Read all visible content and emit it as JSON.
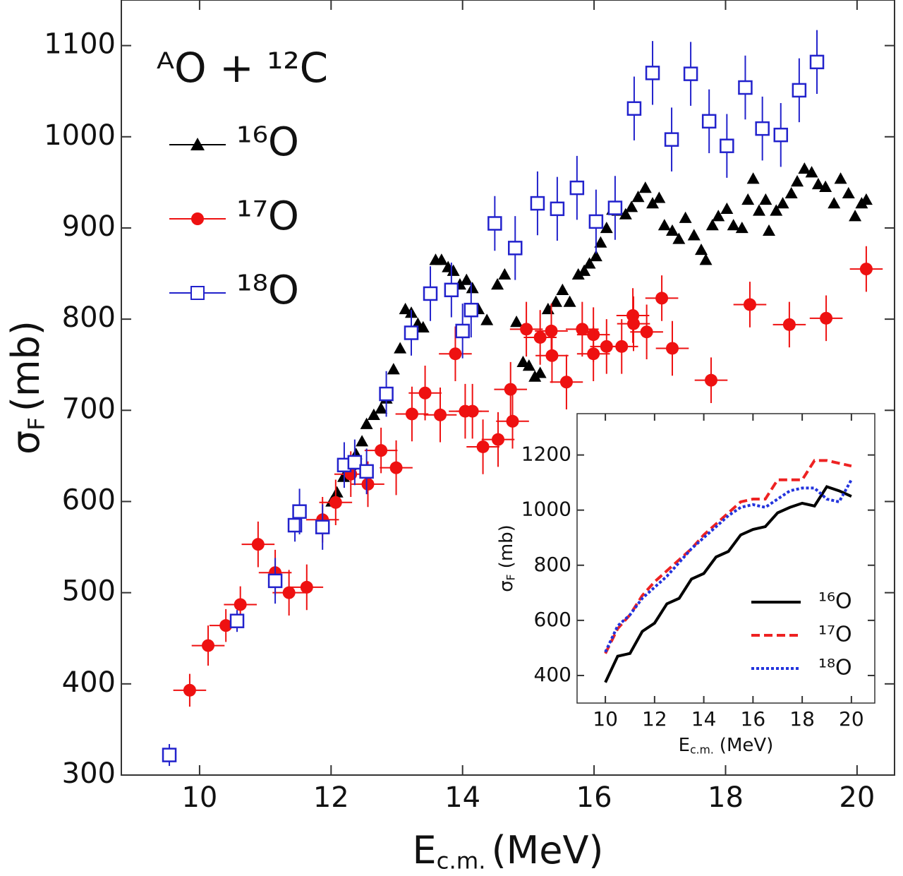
{
  "chart_data": [
    {
      "type": "scatter",
      "title": "ᴬO + ¹²C",
      "x_label": "E",
      "x_label_sub": "c.m.",
      "x_label_unit": "(MeV)",
      "y_label": "σ",
      "y_label_sub": "F",
      "y_label_unit": "(mb)",
      "xlim": [
        8.81,
        20.57
      ],
      "ylim": [
        300,
        1150
      ],
      "xticks": [
        10,
        12,
        14,
        16,
        18,
        20
      ],
      "yticks": [
        300,
        400,
        500,
        600,
        700,
        800,
        900,
        1000,
        1100
      ],
      "legend": "upper left",
      "series": [
        {
          "name": "¹⁶O",
          "color": "#000000",
          "marker": "triangle",
          "x": [
            12.01,
            12.09,
            12.19,
            12.29,
            12.38,
            12.47,
            12.54,
            12.65,
            12.76,
            12.84,
            12.95,
            13.05,
            13.13,
            13.22,
            13.32,
            13.4,
            13.51,
            13.59,
            13.68,
            13.78,
            13.86,
            13.96,
            14.06,
            14.15,
            14.24,
            14.37,
            14.53,
            14.64,
            14.82,
            14.92,
            15.01,
            15.1,
            15.18,
            15.3,
            15.42,
            15.52,
            15.63,
            15.76,
            15.85,
            15.93,
            16.03,
            16.1,
            16.19,
            16.28,
            16.36,
            16.48,
            16.57,
            16.67,
            16.78,
            16.89,
            16.99,
            17.07,
            17.19,
            17.29,
            17.39,
            17.52,
            17.63,
            17.7,
            17.8,
            17.89,
            18.02,
            18.12,
            18.25,
            18.34,
            18.42,
            18.51,
            18.61,
            18.66,
            18.77,
            18.87,
            19.0,
            19.09,
            19.2,
            19.31,
            19.41,
            19.52,
            19.65,
            19.75,
            19.87,
            19.97,
            20.07,
            20.14
          ],
          "values": [
            600,
            610,
            627,
            640,
            652,
            666,
            685,
            695,
            702,
            713,
            745,
            768,
            811,
            807,
            795,
            791,
            830,
            865,
            865,
            857,
            853,
            838,
            843,
            834,
            811,
            799,
            838,
            849,
            797,
            753,
            749,
            737,
            741,
            811,
            819,
            832,
            819,
            849,
            853,
            861,
            869,
            884,
            900,
            920,
            919,
            915,
            923,
            934,
            944,
            927,
            933,
            903,
            897,
            888,
            911,
            892,
            876,
            865,
            903,
            913,
            921,
            903,
            900,
            931,
            954,
            919,
            931,
            897,
            919,
            927,
            938,
            951,
            965,
            961,
            948,
            945,
            927,
            954,
            938,
            913,
            927,
            931
          ]
        },
        {
          "name": "¹⁷O",
          "color": "#ee1111",
          "marker": "circle",
          "xerr": 0.25,
          "x": [
            9.85,
            10.13,
            10.4,
            10.62,
            10.89,
            11.15,
            11.36,
            11.63,
            11.87,
            12.07,
            12.3,
            12.56,
            12.76,
            12.99,
            13.23,
            13.43,
            13.66,
            13.89,
            14.04,
            14.15,
            14.31,
            14.54,
            14.73,
            14.76,
            14.97,
            15.18,
            15.35,
            15.36,
            15.58,
            15.82,
            15.99,
            15.99,
            16.19,
            16.42,
            16.59,
            16.6,
            16.8,
            17.03,
            17.19,
            17.78,
            18.37,
            18.97,
            19.53,
            20.14
          ],
          "values": [
            393,
            442,
            464,
            487,
            553,
            522,
            500,
            506,
            580,
            599,
            630,
            619,
            656,
            637,
            696,
            719,
            695,
            762,
            699,
            699,
            660,
            668,
            723,
            688,
            789,
            780,
            787,
            760,
            731,
            789,
            783,
            762,
            770,
            770,
            804,
            795,
            786,
            823,
            768,
            733,
            816,
            794,
            801,
            855
          ],
          "yerr": [
            18,
            22,
            18,
            20,
            25,
            25,
            25,
            25,
            25,
            25,
            25,
            25,
            25,
            30,
            30,
            30,
            30,
            30,
            30,
            30,
            30,
            30,
            30,
            30,
            30,
            30,
            30,
            30,
            30,
            30,
            30,
            30,
            30,
            30,
            30,
            30,
            30,
            25,
            30,
            25,
            25,
            25,
            25,
            25
          ]
        },
        {
          "name": "¹⁸O",
          "color": "#2222cc",
          "marker": "square",
          "xerr": 0.06,
          "x": [
            9.54,
            10.57,
            11.15,
            11.45,
            11.52,
            11.87,
            12.2,
            12.36,
            12.54,
            12.84,
            13.22,
            13.51,
            13.83,
            14.0,
            14.13,
            14.49,
            14.8,
            15.14,
            15.44,
            15.74,
            16.03,
            16.32,
            16.61,
            16.89,
            17.18,
            17.47,
            17.75,
            18.02,
            18.3,
            18.56,
            18.84,
            19.12,
            19.39
          ],
          "values": [
            322,
            469,
            513,
            574,
            589,
            572,
            640,
            643,
            633,
            718,
            785,
            828,
            832,
            787,
            810,
            905,
            878,
            927,
            921,
            944,
            907,
            922,
            1031,
            1070,
            997,
            1069,
            1017,
            990,
            1054,
            1009,
            1002,
            1051,
            1082
          ],
          "yerr": [
            12,
            12,
            25,
            18,
            25,
            25,
            25,
            25,
            25,
            25,
            25,
            30,
            30,
            30,
            30,
            30,
            35,
            35,
            35,
            35,
            35,
            35,
            35,
            35,
            35,
            35,
            35,
            35,
            35,
            35,
            35,
            35,
            35
          ]
        }
      ]
    },
    {
      "type": "line",
      "x_label": "E",
      "x_label_sub": "c.m.",
      "x_label_unit": "(MeV)",
      "y_label": "σ",
      "y_label_sub": "F",
      "y_label_unit": "(mb)",
      "xlim": [
        8.85,
        20.95
      ],
      "ylim": [
        300,
        1350
      ],
      "xticks": [
        10,
        12,
        14,
        16,
        18,
        20
      ],
      "yticks": [
        400,
        600,
        800,
        1000,
        1200
      ],
      "legend": "lower right",
      "x": [
        10,
        10.5,
        11,
        11.5,
        12,
        12.5,
        13,
        13.5,
        14,
        14.5,
        15,
        15.5,
        16,
        16.5,
        17,
        17.5,
        18,
        18.5,
        19,
        19.5,
        20
      ],
      "series": [
        {
          "name": "¹⁶O",
          "color": "#000000",
          "dash": "solid",
          "values": [
            375,
            470,
            480,
            560,
            590,
            660,
            680,
            750,
            770,
            830,
            850,
            910,
            930,
            940,
            990,
            1010,
            1025,
            1015,
            1085,
            1070,
            1050
          ]
        },
        {
          "name": "¹⁷O",
          "color": "#ee2222",
          "dash": "dashed",
          "values": [
            480,
            570,
            620,
            690,
            740,
            780,
            820,
            860,
            910,
            950,
            990,
            1030,
            1040,
            1040,
            1110,
            1110,
            1110,
            1180,
            1180,
            1170,
            1160
          ]
        },
        {
          "name": "¹⁸O",
          "color": "#2233dd",
          "dash": "dotted",
          "values": [
            485,
            580,
            620,
            680,
            720,
            760,
            810,
            860,
            900,
            940,
            980,
            1010,
            1020,
            1010,
            1040,
            1070,
            1080,
            1080,
            1040,
            1030,
            1110
          ]
        }
      ]
    }
  ]
}
